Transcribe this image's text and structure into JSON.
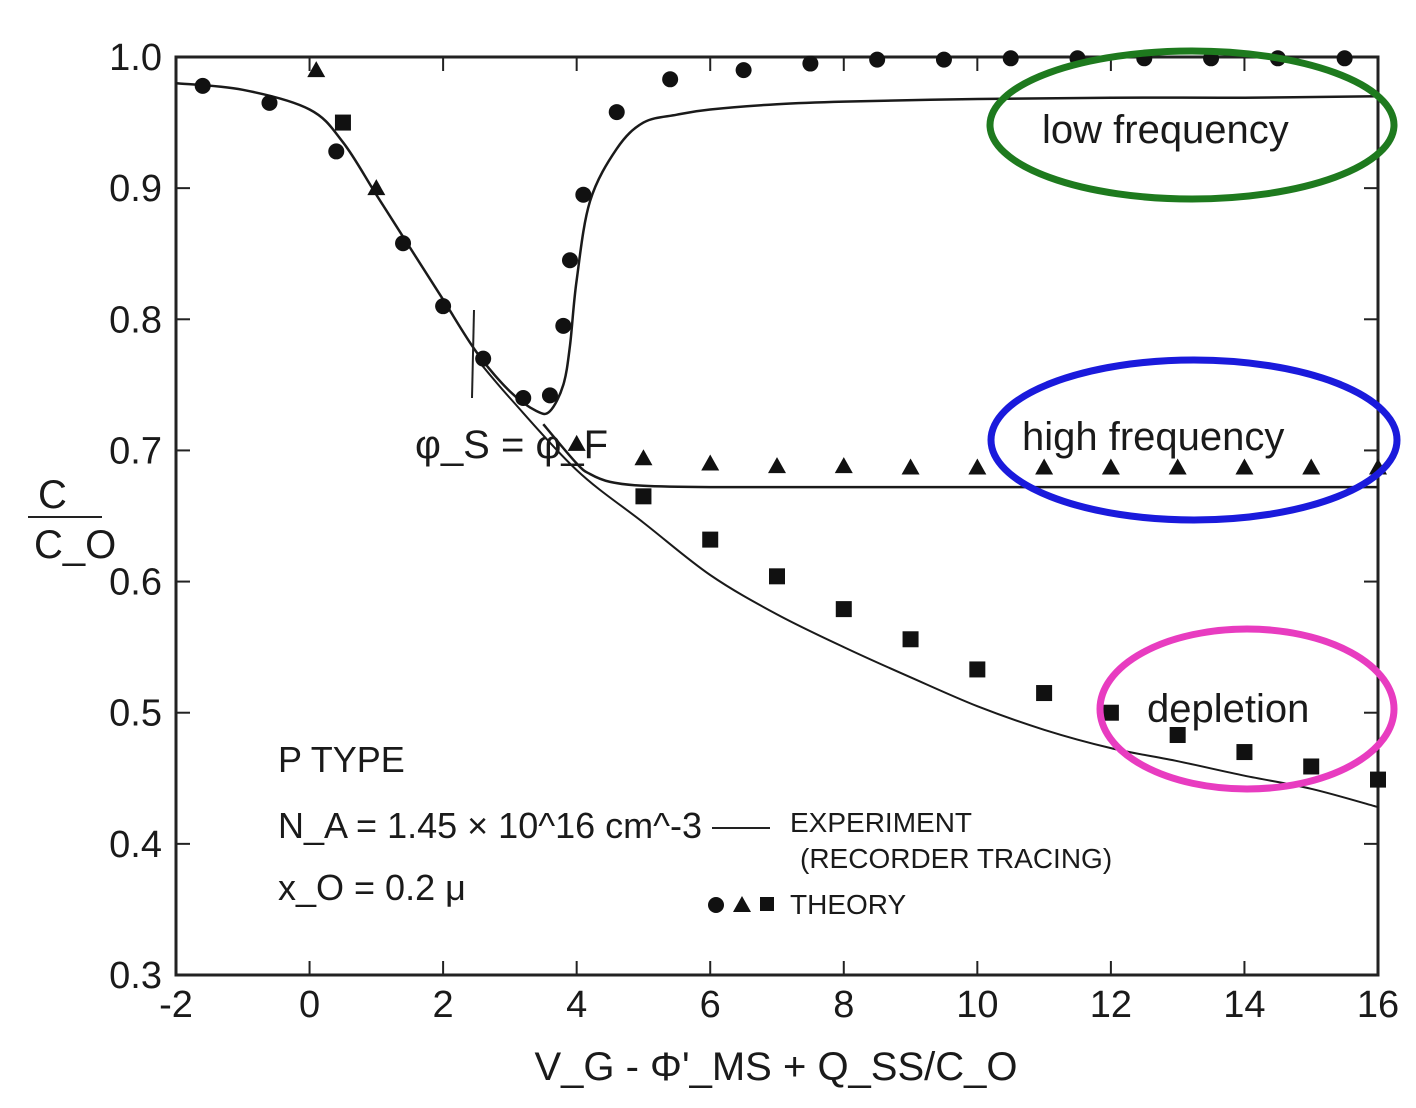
{
  "chart_data": {
    "type": "line",
    "xlim": [
      -2,
      16
    ],
    "ylim": [
      0.3,
      1.0
    ],
    "x_ticks": [
      -2,
      0,
      2,
      4,
      6,
      8,
      10,
      12,
      14,
      16
    ],
    "x_tick_labels": [
      "-2",
      "0",
      "2",
      "4",
      "6",
      "8",
      "10",
      "12",
      "14",
      "16"
    ],
    "y_ticks": [
      0.3,
      0.4,
      0.5,
      0.6,
      0.7,
      0.8,
      0.9,
      1.0
    ],
    "y_tick_labels": [
      "0.3",
      "0.4",
      "0.5",
      "0.6",
      "0.7",
      "0.8",
      "0.9",
      "1.0"
    ],
    "xlabel": "V_G - Φ'_MS + Q_SS/C_O",
    "ylabel_num": "C",
    "ylabel_den": "C_O",
    "grid": false,
    "annotations": {
      "low_frequency": "low frequency",
      "high_frequency": "high frequency",
      "depletion": "depletion",
      "phi_label": "φ_S = φ_F"
    },
    "annotation_colors": {
      "low_frequency": "#1e7a1e",
      "high_frequency": "#1a1adc",
      "depletion": "#e83cc0"
    },
    "info": {
      "type_line": "P TYPE",
      "na_line": "N_A = 1.45 × 10^16 cm^-3",
      "xo_line": "x_O = 0.2 μ"
    },
    "legend": {
      "experiment_label": "EXPERIMENT",
      "experiment_sub": "(RECORDER TRACING)",
      "theory_label": "THEORY",
      "position": "bottom-center"
    },
    "series": [
      {
        "kind": "experiment-low-frequency",
        "x": [
          -2,
          -1,
          0,
          0.5,
          1,
          1.5,
          2,
          2.5,
          3,
          3.4,
          3.6,
          3.8,
          3.9,
          4.0,
          4.2,
          4.6,
          5,
          5.5,
          6,
          7,
          8,
          10,
          12,
          14,
          16
        ],
        "y": [
          0.98,
          0.975,
          0.96,
          0.935,
          0.895,
          0.855,
          0.815,
          0.775,
          0.745,
          0.73,
          0.73,
          0.75,
          0.78,
          0.83,
          0.89,
          0.93,
          0.95,
          0.956,
          0.96,
          0.964,
          0.966,
          0.968,
          0.969,
          0.969,
          0.97
        ]
      },
      {
        "kind": "experiment-high-frequency",
        "x": [
          3.5,
          4.0,
          4.2,
          4.5,
          5,
          6,
          8,
          10,
          12,
          14,
          16
        ],
        "y": [
          0.72,
          0.69,
          0.682,
          0.676,
          0.673,
          0.672,
          0.672,
          0.672,
          0.672,
          0.672,
          0.672
        ]
      },
      {
        "kind": "experiment-depletion",
        "x": [
          2.5,
          3,
          4,
          5,
          6,
          7,
          8,
          9,
          10,
          11,
          12,
          13,
          14,
          15,
          16
        ],
        "y": [
          0.77,
          0.74,
          0.685,
          0.645,
          0.605,
          0.575,
          0.55,
          0.527,
          0.505,
          0.487,
          0.473,
          0.463,
          0.452,
          0.442,
          0.428
        ]
      },
      {
        "kind": "theory-low-frequency",
        "marker": "circle",
        "x": [
          -1.6,
          -0.6,
          0.4,
          1.4,
          2.0,
          2.6,
          3.2,
          3.6,
          3.8,
          3.9,
          4.1,
          4.6,
          5.4,
          6.5,
          7.5,
          8.5,
          9.5,
          10.5,
          11.5,
          12.5,
          13.5,
          14.5,
          15.5
        ],
        "y": [
          0.978,
          0.965,
          0.928,
          0.858,
          0.81,
          0.77,
          0.74,
          0.742,
          0.795,
          0.845,
          0.895,
          0.958,
          0.983,
          0.99,
          0.995,
          0.998,
          0.998,
          0.999,
          0.999,
          0.999,
          0.999,
          0.999,
          0.999
        ]
      },
      {
        "kind": "theory-high-frequency",
        "marker": "triangle",
        "x": [
          0.1,
          1.0,
          4.0,
          5.0,
          6.0,
          7.0,
          8.0,
          9.0,
          10.0,
          11.0,
          12.0,
          13.0,
          14.0,
          15.0,
          16.0
        ],
        "y": [
          0.99,
          0.9,
          0.705,
          0.694,
          0.69,
          0.688,
          0.688,
          0.687,
          0.687,
          0.687,
          0.687,
          0.687,
          0.687,
          0.687,
          0.687
        ]
      },
      {
        "kind": "theory-depletion",
        "marker": "square",
        "x": [
          0.5,
          5.0,
          6.0,
          7.0,
          8.0,
          9.0,
          10.0,
          11.0,
          12.0,
          13.0,
          14.0,
          15.0,
          16.0
        ],
        "y": [
          0.95,
          0.665,
          0.632,
          0.604,
          0.579,
          0.556,
          0.533,
          0.515,
          0.5,
          0.483,
          0.47,
          0.459,
          0.449
        ]
      }
    ]
  }
}
